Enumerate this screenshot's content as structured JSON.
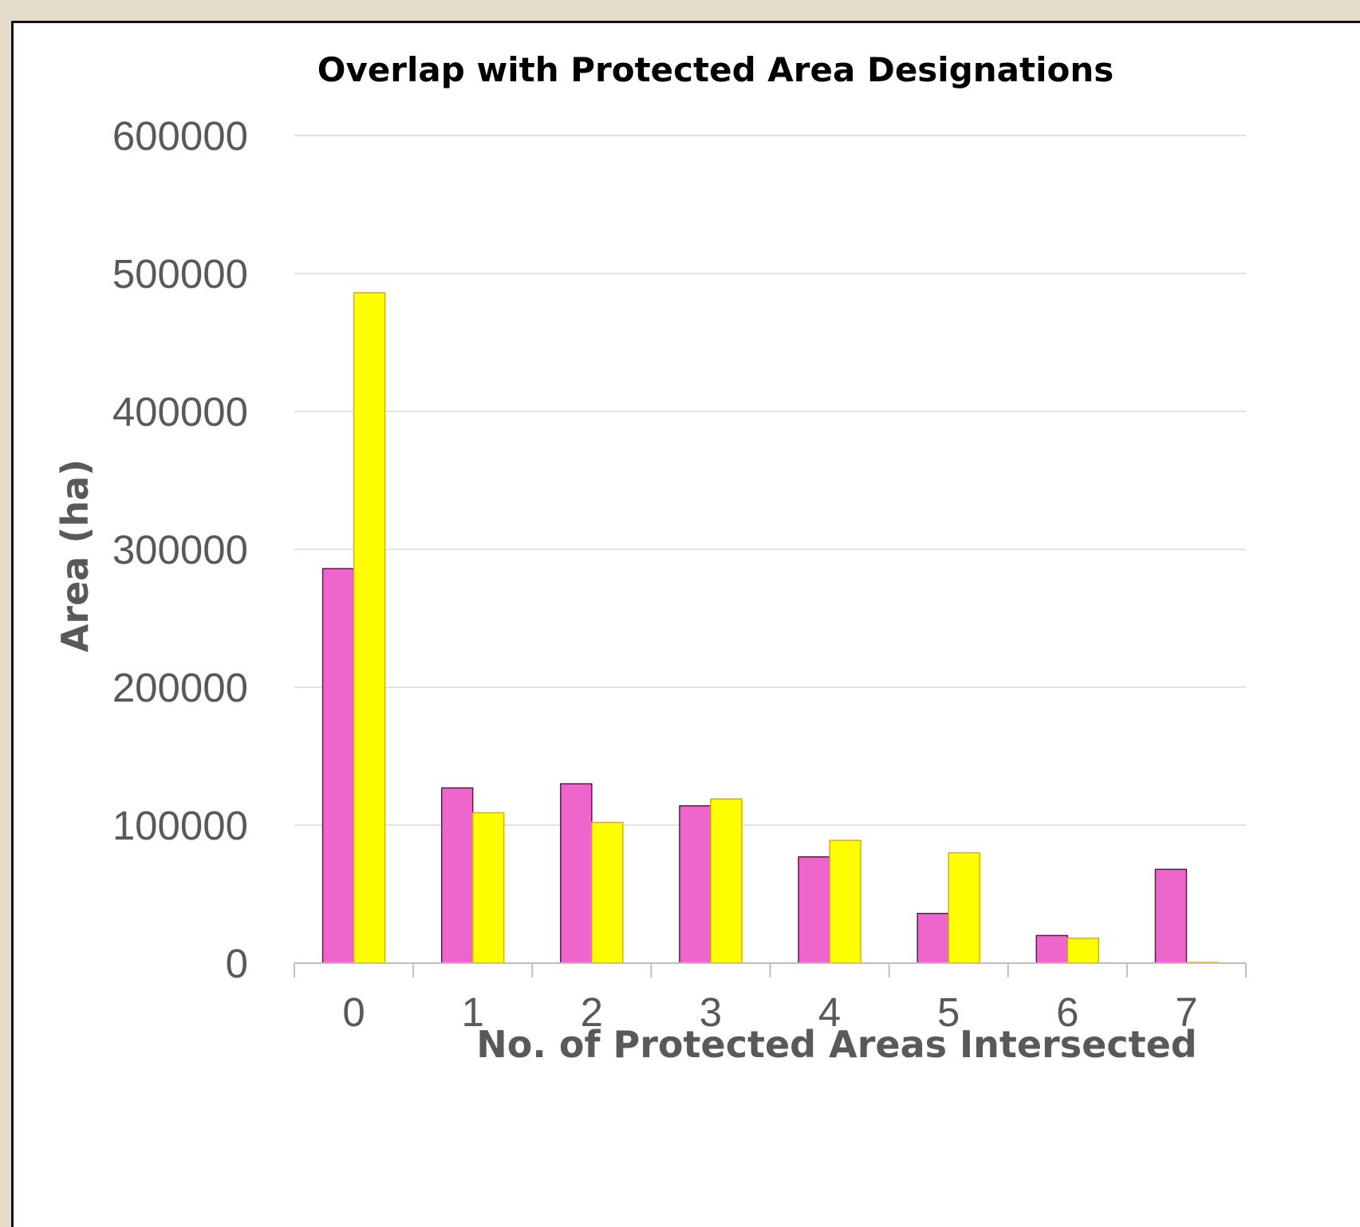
{
  "chart_data": {
    "type": "bar",
    "title": "Overlap with Protected Area Designations",
    "xlabel": "No. of Protected Areas Intersected",
    "ylabel": "Area (ha)",
    "categories": [
      "0",
      "1",
      "2",
      "3",
      "4",
      "5",
      "6",
      "7"
    ],
    "series": [
      {
        "color": "#ee66cc",
        "stroke": "#5a1a4a",
        "values": [
          286000,
          127000,
          130000,
          114000,
          77000,
          36000,
          20000,
          68000
        ]
      },
      {
        "color": "#ffff00",
        "stroke": "#d8b000",
        "values": [
          486000,
          109000,
          102000,
          119000,
          89000,
          80000,
          18000,
          500
        ]
      }
    ],
    "ylim": [
      0,
      600000
    ],
    "yticks": [
      "0",
      "100000",
      "200000",
      "300000",
      "400000",
      "500000",
      "600000"
    ],
    "grid": true,
    "legend": "none"
  }
}
